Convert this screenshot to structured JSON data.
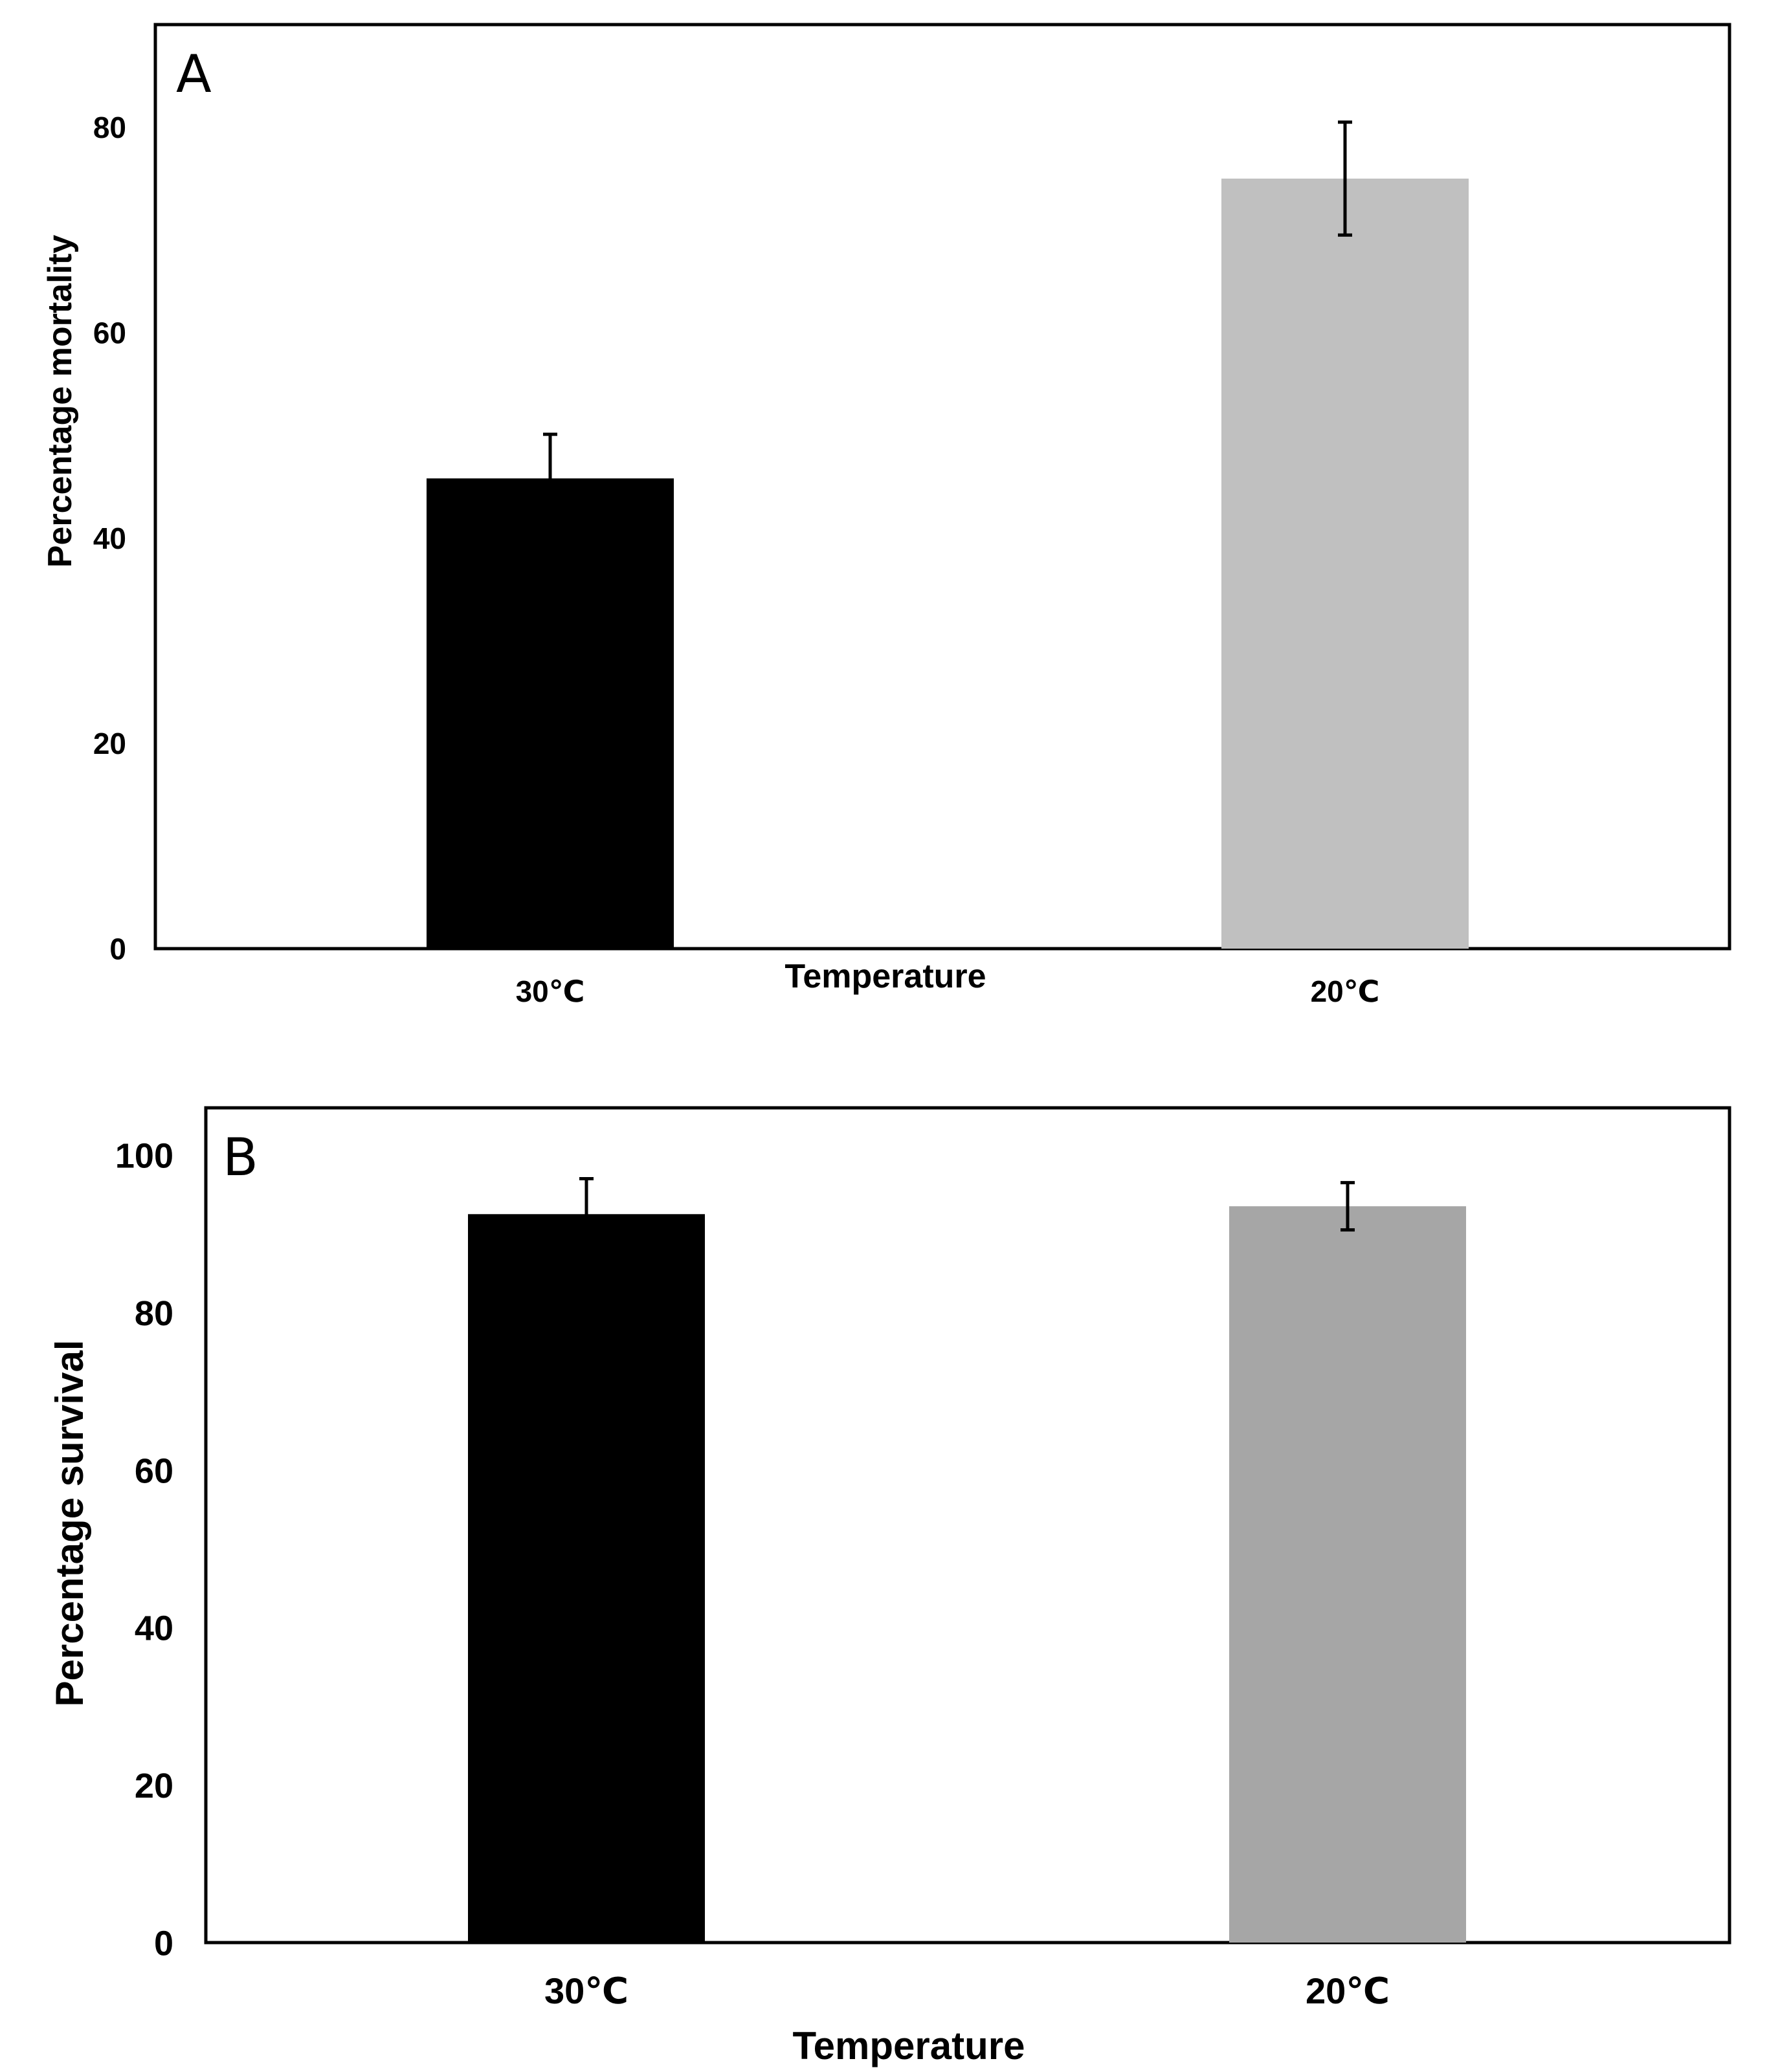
{
  "chart_data": [
    {
      "type": "bar",
      "panel_label": "A",
      "title": "",
      "xlabel": "Temperature",
      "ylabel": "Percentage mortality",
      "categories": [
        "30℃",
        "20℃"
      ],
      "values": [
        45.8,
        75.0
      ],
      "error": [
        4.3,
        5.5
      ],
      "colors": [
        "#000000",
        "#c0c0c0"
      ],
      "yticks": [
        "0",
        "20",
        "40",
        "60",
        "80"
      ],
      "ylim": [
        0,
        90
      ],
      "grid": false,
      "legend": "none"
    },
    {
      "type": "bar",
      "panel_label": "B",
      "title": "",
      "xlabel": "Temperature",
      "ylabel": "Percentage survival",
      "categories": [
        "30℃",
        "20℃"
      ],
      "values": [
        92.5,
        93.5
      ],
      "error": [
        4.5,
        3.0
      ],
      "colors": [
        "#000000",
        "#a6a6a6"
      ],
      "yticks": [
        "0",
        "20",
        "40",
        "60",
        "80",
        "100"
      ],
      "ylim": [
        0,
        106
      ],
      "grid": false,
      "legend": "none"
    }
  ]
}
